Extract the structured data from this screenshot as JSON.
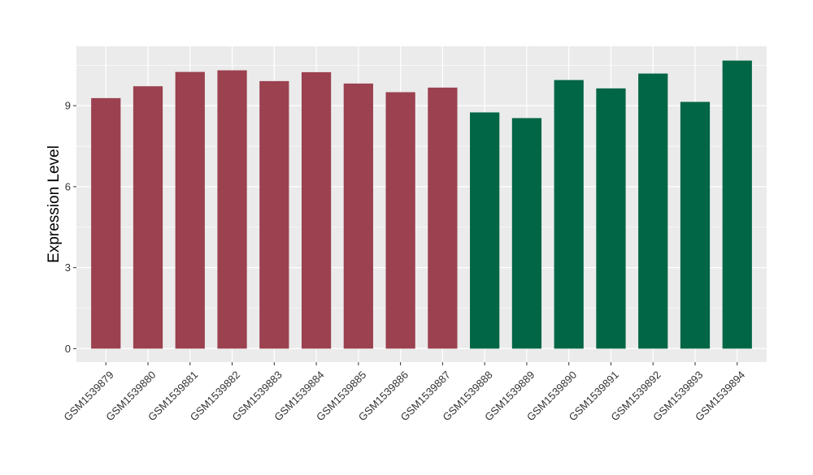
{
  "chart_data": {
    "type": "bar",
    "ylabel": "Expression Level",
    "xlabel": "",
    "title": "",
    "categories": [
      "GSM1539879",
      "GSM1539880",
      "GSM1539881",
      "GSM1539882",
      "GSM1539883",
      "GSM1539884",
      "GSM1539885",
      "GSM1539886",
      "GSM1539887",
      "GSM1539888",
      "GSM1539889",
      "GSM1539890",
      "GSM1539891",
      "GSM1539892",
      "GSM1539893",
      "GSM1539894"
    ],
    "values": [
      9.28,
      9.72,
      10.25,
      10.31,
      9.91,
      10.24,
      9.82,
      9.5,
      9.67,
      8.75,
      8.54,
      9.95,
      9.64,
      10.19,
      9.14,
      10.67
    ],
    "groups": [
      0,
      0,
      0,
      0,
      0,
      0,
      0,
      0,
      0,
      1,
      1,
      1,
      1,
      1,
      1,
      1
    ],
    "group_colors": [
      "#9B4150",
      "#006645"
    ],
    "yticks": [
      0,
      3,
      6,
      9
    ],
    "ylim": [
      -0.5,
      11.2
    ],
    "grid": true,
    "panel_background": "#EBEBEB",
    "gridline_color": "#FFFFFF"
  }
}
